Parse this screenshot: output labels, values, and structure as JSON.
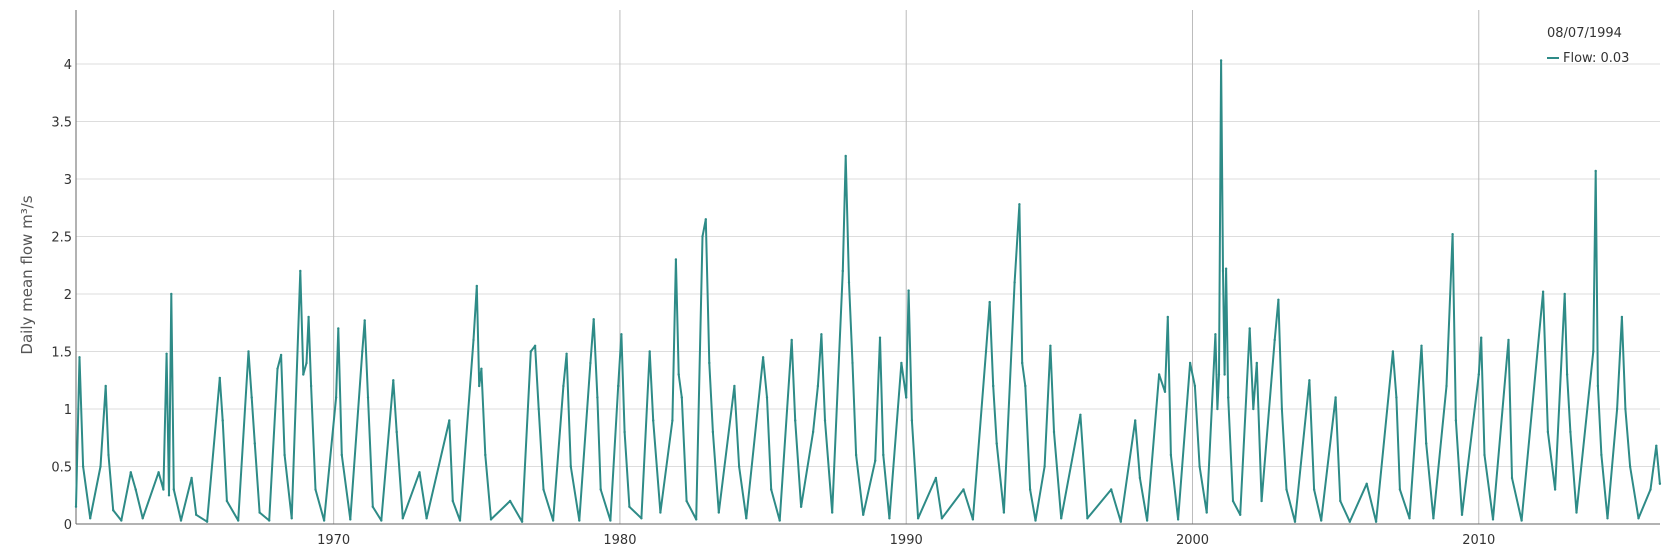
{
  "chart_data": {
    "type": "line",
    "title": "",
    "xlabel": "",
    "ylabel": "Daily mean flow m³/s",
    "xlim": [
      "1961-01-01",
      "2016-05-01"
    ],
    "ylim": [
      0,
      4.5
    ],
    "x_ticks": [
      "1970",
      "1980",
      "1990",
      "2000",
      "2010"
    ],
    "y_ticks": [
      "0",
      "0.5",
      "1",
      "1.5",
      "2",
      "2.5",
      "3",
      "3.5",
      "4"
    ],
    "grid": {
      "horizontal": true,
      "vertical": true
    },
    "legend": {
      "position": "top-right",
      "date": "08/07/1994",
      "entry": "Flow: 0.03"
    },
    "colors": {
      "line": "#2e8b87",
      "grid_h": "#dddddd",
      "grid_v": "#bbbbbb",
      "axis": "#666666"
    },
    "series": [
      {
        "points": [
          [
            "1961-01-01",
            0.15
          ],
          [
            "1961-02-15",
            1.45
          ],
          [
            "1961-04-01",
            0.5
          ],
          [
            "1961-07-01",
            0.05
          ],
          [
            "1961-11-10",
            0.5
          ],
          [
            "1962-01-15",
            1.2
          ],
          [
            "1962-02-20",
            0.6
          ],
          [
            "1962-04-20",
            0.12
          ],
          [
            "1962-08-01",
            0.03
          ],
          [
            "1962-12-01",
            0.45
          ],
          [
            "1963-02-01",
            0.3
          ],
          [
            "1963-05-01",
            0.05
          ],
          [
            "1963-11-20",
            0.45
          ],
          [
            "1964-01-20",
            0.3
          ],
          [
            "1964-03-01",
            1.48
          ],
          [
            "1964-04-01",
            0.25
          ],
          [
            "1964-05-01",
            2.0
          ],
          [
            "1964-06-01",
            0.3
          ],
          [
            "1964-09-01",
            0.03
          ],
          [
            "1965-01-15",
            0.4
          ],
          [
            "1965-03-15",
            0.08
          ],
          [
            "1965-08-01",
            0.02
          ],
          [
            "1966-01-10",
            1.27
          ],
          [
            "1966-02-15",
            0.9
          ],
          [
            "1966-04-10",
            0.2
          ],
          [
            "1966-09-01",
            0.03
          ],
          [
            "1967-01-10",
            1.5
          ],
          [
            "1967-02-20",
            1.1
          ],
          [
            "1967-04-01",
            0.7
          ],
          [
            "1967-06-01",
            0.1
          ],
          [
            "1967-10-01",
            0.03
          ],
          [
            "1968-01-15",
            1.35
          ],
          [
            "1968-03-01",
            1.47
          ],
          [
            "1968-04-15",
            0.6
          ],
          [
            "1968-07-15",
            0.05
          ],
          [
            "1968-11-01",
            2.2
          ],
          [
            "1968-12-10",
            1.3
          ],
          [
            "1969-01-20",
            1.4
          ],
          [
            "1969-02-15",
            1.8
          ],
          [
            "1969-03-20",
            1.2
          ],
          [
            "1969-05-15",
            0.3
          ],
          [
            "1969-09-01",
            0.03
          ],
          [
            "1970-02-01",
            1.1
          ],
          [
            "1970-03-01",
            1.7
          ],
          [
            "1970-04-15",
            0.6
          ],
          [
            "1970-08-01",
            0.04
          ],
          [
            "1971-01-01",
            1.5
          ],
          [
            "1971-02-01",
            1.77
          ],
          [
            "1971-03-15",
            1.1
          ],
          [
            "1971-05-15",
            0.15
          ],
          [
            "1971-09-01",
            0.03
          ],
          [
            "1972-02-01",
            1.25
          ],
          [
            "1972-03-15",
            0.8
          ],
          [
            "1972-06-01",
            0.05
          ],
          [
            "1973-01-01",
            0.45
          ],
          [
            "1973-04-01",
            0.05
          ],
          [
            "1974-01-15",
            0.9
          ],
          [
            "1974-03-01",
            0.2
          ],
          [
            "1974-06-01",
            0.03
          ],
          [
            "1974-11-20",
            1.6
          ],
          [
            "1975-01-01",
            2.07
          ],
          [
            "1975-02-01",
            1.2
          ],
          [
            "1975-03-01",
            1.35
          ],
          [
            "1975-04-20",
            0.6
          ],
          [
            "1975-07-01",
            0.04
          ],
          [
            "1976-03-01",
            0.2
          ],
          [
            "1976-08-01",
            0.02
          ],
          [
            "1976-11-20",
            1.5
          ],
          [
            "1977-01-15",
            1.55
          ],
          [
            "1977-03-01",
            1.0
          ],
          [
            "1977-05-01",
            0.3
          ],
          [
            "1977-09-01",
            0.03
          ],
          [
            "1978-01-10",
            1.2
          ],
          [
            "1978-02-20",
            1.48
          ],
          [
            "1978-04-15",
            0.5
          ],
          [
            "1978-08-01",
            0.03
          ],
          [
            "1978-12-20",
            1.4
          ],
          [
            "1979-02-01",
            1.78
          ],
          [
            "1979-03-20",
            1.1
          ],
          [
            "1979-05-01",
            0.3
          ],
          [
            "1979-09-01",
            0.03
          ],
          [
            "1979-12-10",
            1.2
          ],
          [
            "1980-01-20",
            1.65
          ],
          [
            "1980-03-01",
            0.8
          ],
          [
            "1980-05-01",
            0.15
          ],
          [
            "1980-10-01",
            0.05
          ],
          [
            "1981-01-15",
            1.5
          ],
          [
            "1981-03-01",
            0.9
          ],
          [
            "1981-06-01",
            0.1
          ],
          [
            "1981-11-01",
            0.9
          ],
          [
            "1981-12-15",
            2.3
          ],
          [
            "1982-01-20",
            1.3
          ],
          [
            "1982-03-01",
            1.1
          ],
          [
            "1982-05-01",
            0.2
          ],
          [
            "1982-09-01",
            0.04
          ],
          [
            "1982-11-20",
            2.5
          ],
          [
            "1983-01-01",
            2.65
          ],
          [
            "1983-02-15",
            1.4
          ],
          [
            "1983-04-01",
            0.8
          ],
          [
            "1983-06-15",
            0.1
          ],
          [
            "1984-01-01",
            1.2
          ],
          [
            "1984-03-01",
            0.5
          ],
          [
            "1984-06-01",
            0.05
          ],
          [
            "1985-01-01",
            1.45
          ],
          [
            "1985-02-20",
            1.1
          ],
          [
            "1985-04-15",
            0.3
          ],
          [
            "1985-08-01",
            0.03
          ],
          [
            "1986-01-01",
            1.6
          ],
          [
            "1986-02-15",
            0.9
          ],
          [
            "1986-05-01",
            0.15
          ],
          [
            "1986-10-01",
            0.8
          ],
          [
            "1986-12-01",
            1.2
          ],
          [
            "1987-01-15",
            1.65
          ],
          [
            "1987-03-01",
            0.9
          ],
          [
            "1987-06-01",
            0.1
          ],
          [
            "1987-10-15",
            2.2
          ],
          [
            "1987-11-20",
            3.2
          ],
          [
            "1988-01-01",
            2.1
          ],
          [
            "1988-02-15",
            1.4
          ],
          [
            "1988-04-01",
            0.6
          ],
          [
            "1988-07-01",
            0.08
          ],
          [
            "1988-12-01",
            0.55
          ],
          [
            "1989-02-01",
            1.62
          ],
          [
            "1989-03-15",
            0.6
          ],
          [
            "1989-06-01",
            0.05
          ],
          [
            "1989-11-01",
            1.4
          ],
          [
            "1990-01-01",
            1.1
          ],
          [
            "1990-02-01",
            2.03
          ],
          [
            "1990-03-15",
            0.9
          ],
          [
            "1990-06-01",
            0.05
          ],
          [
            "1991-01-15",
            0.4
          ],
          [
            "1991-04-01",
            0.05
          ],
          [
            "1992-01-01",
            0.3
          ],
          [
            "1992-05-01",
            0.04
          ],
          [
            "1992-10-15",
            1.5
          ],
          [
            "1992-12-01",
            1.93
          ],
          [
            "1993-01-15",
            1.2
          ],
          [
            "1993-03-01",
            0.7
          ],
          [
            "1993-06-01",
            0.1
          ],
          [
            "1993-10-15",
            2.1
          ],
          [
            "1993-12-15",
            2.78
          ],
          [
            "1994-01-20",
            1.4
          ],
          [
            "1994-03-01",
            1.2
          ],
          [
            "1994-05-01",
            0.3
          ],
          [
            "1994-07-08",
            0.03
          ],
          [
            "1994-11-01",
            0.5
          ],
          [
            "1995-01-15",
            1.55
          ],
          [
            "1995-03-01",
            0.8
          ],
          [
            "1995-06-01",
            0.05
          ],
          [
            "1996-02-01",
            0.95
          ],
          [
            "1996-05-01",
            0.05
          ],
          [
            "1997-03-01",
            0.3
          ],
          [
            "1997-07-01",
            0.02
          ],
          [
            "1998-01-01",
            0.9
          ],
          [
            "1998-03-01",
            0.4
          ],
          [
            "1998-06-01",
            0.03
          ],
          [
            "1998-11-01",
            1.3
          ],
          [
            "1999-01-15",
            1.15
          ],
          [
            "1999-02-20",
            1.8
          ],
          [
            "1999-04-01",
            0.6
          ],
          [
            "1999-07-01",
            0.04
          ],
          [
            "1999-12-01",
            1.4
          ],
          [
            "2000-02-01",
            1.2
          ],
          [
            "2000-04-01",
            0.5
          ],
          [
            "2000-07-01",
            0.1
          ],
          [
            "2000-10-20",
            1.65
          ],
          [
            "2000-11-15",
            1.0
          ],
          [
            "2000-12-05",
            1.3
          ],
          [
            "2001-01-01",
            4.03
          ],
          [
            "2001-01-25",
            2.2
          ],
          [
            "2001-02-15",
            1.3
          ],
          [
            "2001-03-05",
            2.22
          ],
          [
            "2001-04-01",
            1.1
          ],
          [
            "2001-06-01",
            0.2
          ],
          [
            "2001-09-01",
            0.08
          ],
          [
            "2002-01-01",
            1.7
          ],
          [
            "2002-02-15",
            1.0
          ],
          [
            "2002-04-01",
            1.4
          ],
          [
            "2002-06-01",
            0.2
          ],
          [
            "2002-11-15",
            1.6
          ],
          [
            "2003-01-01",
            1.95
          ],
          [
            "2003-02-15",
            1.0
          ],
          [
            "2003-04-15",
            0.3
          ],
          [
            "2003-08-01",
            0.02
          ],
          [
            "2004-02-01",
            1.25
          ],
          [
            "2004-04-01",
            0.3
          ],
          [
            "2004-07-01",
            0.03
          ],
          [
            "2005-01-01",
            1.1
          ],
          [
            "2005-03-01",
            0.2
          ],
          [
            "2005-07-01",
            0.02
          ],
          [
            "2006-02-01",
            0.35
          ],
          [
            "2006-06-01",
            0.02
          ],
          [
            "2007-01-01",
            1.5
          ],
          [
            "2007-02-15",
            1.1
          ],
          [
            "2007-04-01",
            0.3
          ],
          [
            "2007-08-01",
            0.05
          ],
          [
            "2008-01-01",
            1.55
          ],
          [
            "2008-03-01",
            0.7
          ],
          [
            "2008-06-01",
            0.05
          ],
          [
            "2008-11-15",
            1.2
          ],
          [
            "2009-02-01",
            2.52
          ],
          [
            "2009-03-15",
            0.9
          ],
          [
            "2009-06-01",
            0.08
          ],
          [
            "2010-01-01",
            1.3
          ],
          [
            "2010-02-01",
            1.62
          ],
          [
            "2010-03-15",
            0.6
          ],
          [
            "2010-07-01",
            0.04
          ],
          [
            "2011-01-15",
            1.6
          ],
          [
            "2011-03-01",
            0.4
          ],
          [
            "2011-07-01",
            0.03
          ],
          [
            "2012-04-01",
            2.02
          ],
          [
            "2012-06-01",
            0.8
          ],
          [
            "2012-09-01",
            0.3
          ],
          [
            "2013-01-01",
            2.0
          ],
          [
            "2013-02-01",
            1.3
          ],
          [
            "2013-03-15",
            0.8
          ],
          [
            "2013-06-01",
            0.1
          ],
          [
            "2014-01-01",
            1.5
          ],
          [
            "2014-02-01",
            3.07
          ],
          [
            "2014-03-01",
            1.2
          ],
          [
            "2014-04-15",
            0.6
          ],
          [
            "2014-07-01",
            0.05
          ],
          [
            "2014-11-01",
            1.0
          ],
          [
            "2015-01-01",
            1.8
          ],
          [
            "2015-02-15",
            1.0
          ],
          [
            "2015-04-15",
            0.5
          ],
          [
            "2015-08-01",
            0.05
          ],
          [
            "2016-01-01",
            0.3
          ],
          [
            "2016-03-15",
            0.68
          ],
          [
            "2016-04-30",
            0.35
          ]
        ]
      }
    ]
  }
}
